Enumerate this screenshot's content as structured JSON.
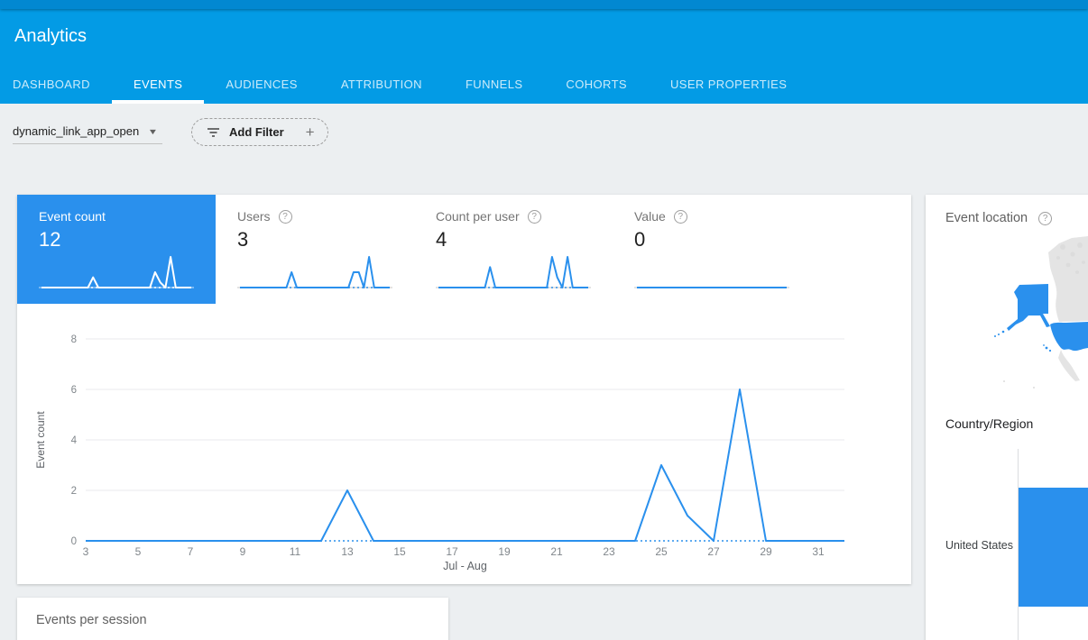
{
  "header": {
    "title": "Analytics",
    "tabs": [
      {
        "label": "DASHBOARD",
        "active": false
      },
      {
        "label": "EVENTS",
        "active": true
      },
      {
        "label": "AUDIENCES",
        "active": false
      },
      {
        "label": "ATTRIBUTION",
        "active": false
      },
      {
        "label": "FUNNELS",
        "active": false
      },
      {
        "label": "COHORTS",
        "active": false
      },
      {
        "label": "USER PROPERTIES",
        "active": false
      }
    ]
  },
  "filter_bar": {
    "event_select_value": "dynamic_link_app_open",
    "add_filter_label": "Add Filter"
  },
  "icons": {
    "help": "?",
    "caret": "▼",
    "plus": "+"
  },
  "metrics": [
    {
      "label": "Event count",
      "value": "12",
      "selected": true,
      "help_icon": false,
      "spark": [
        0,
        0,
        0,
        0,
        0,
        0,
        0,
        0,
        0,
        0,
        2,
        0,
        0,
        0,
        0,
        0,
        0,
        0,
        0,
        0,
        0,
        0,
        3,
        1,
        0,
        6,
        0,
        0,
        0,
        0
      ]
    },
    {
      "label": "Users",
      "value": "3",
      "selected": false,
      "help_icon": true,
      "spark": [
        0,
        0,
        0,
        0,
        0,
        0,
        0,
        0,
        0,
        0,
        1,
        0,
        0,
        0,
        0,
        0,
        0,
        0,
        0,
        0,
        0,
        0,
        1,
        1,
        0,
        2,
        0,
        0,
        0,
        0
      ]
    },
    {
      "label": "Count per user",
      "value": "4",
      "selected": false,
      "help_icon": true,
      "spark": [
        0,
        0,
        0,
        0,
        0,
        0,
        0,
        0,
        0,
        0,
        2,
        0,
        0,
        0,
        0,
        0,
        0,
        0,
        0,
        0,
        0,
        0,
        3,
        1,
        0,
        3,
        0,
        0,
        0,
        0
      ]
    },
    {
      "label": "Value",
      "value": "0",
      "selected": false,
      "help_icon": true,
      "spark": [
        0,
        0,
        0,
        0,
        0,
        0,
        0,
        0,
        0,
        0,
        0,
        0,
        0,
        0,
        0,
        0,
        0,
        0,
        0,
        0,
        0,
        0,
        0,
        0,
        0,
        0,
        0,
        0,
        0,
        0
      ]
    }
  ],
  "chart_data": {
    "type": "line",
    "series_name": "Event count",
    "title": "",
    "xlabel": "Jul - Aug",
    "ylabel": "Event count",
    "ylim": [
      0,
      8
    ],
    "y_ticks": [
      0,
      2,
      4,
      6,
      8
    ],
    "x_ticks": [
      3,
      5,
      7,
      9,
      11,
      13,
      15,
      17,
      19,
      21,
      23,
      25,
      27,
      29,
      31
    ],
    "grid": "horizontal",
    "legend": "none",
    "x": [
      3,
      4,
      5,
      6,
      7,
      8,
      9,
      10,
      11,
      12,
      13,
      14,
      15,
      16,
      17,
      18,
      19,
      20,
      21,
      22,
      23,
      24,
      25,
      26,
      27,
      28,
      29,
      30,
      31,
      32
    ],
    "values": [
      0,
      0,
      0,
      0,
      0,
      0,
      0,
      0,
      0,
      0,
      2,
      0,
      0,
      0,
      0,
      0,
      0,
      0,
      0,
      0,
      0,
      0,
      3,
      1,
      0,
      6,
      0,
      0,
      0,
      0
    ]
  },
  "event_location": {
    "title": "Event location",
    "country_region_label": "Country/Region",
    "countries": [
      {
        "name": "United States",
        "bar_relative": 1.0
      }
    ]
  },
  "events_per_session": {
    "title": "Events per session"
  },
  "colors": {
    "header_bar": "#039be5",
    "header_top_strip": "#0288d1",
    "selected_metric_bg": "#2a90ed",
    "chart_line": "#2a90ed",
    "map_highlight": "#2a90ed",
    "map_land": "#e4e4e4",
    "page_bg": "#eceff1"
  }
}
